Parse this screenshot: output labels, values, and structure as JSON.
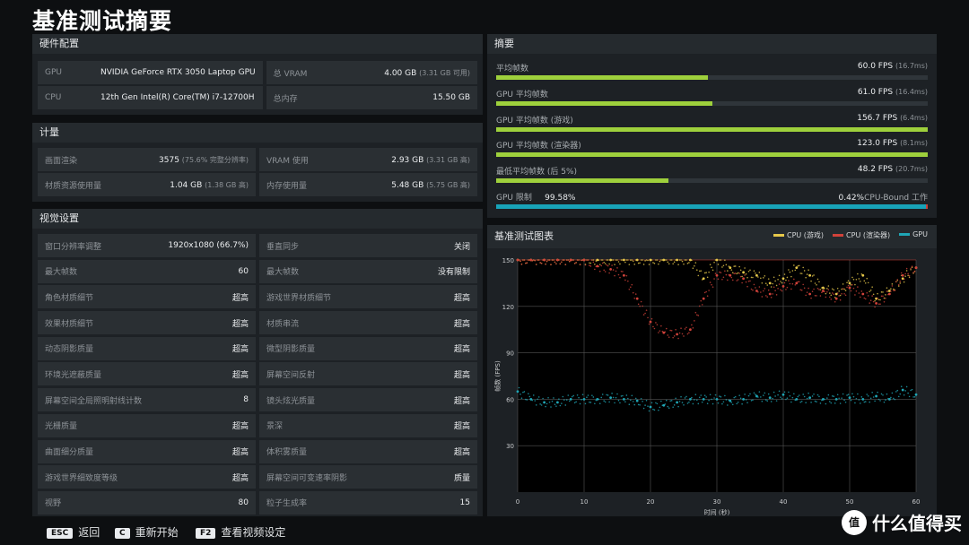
{
  "title": "基准测试摘要",
  "hardware": {
    "header": "硬件配置",
    "gpu_label": "GPU",
    "gpu_value": "NVIDIA GeForce RTX 3050 Laptop GPU",
    "cpu_label": "CPU",
    "cpu_value": "12th Gen Intel(R) Core(TM) i7-12700H",
    "vram_label": "总 VRAM",
    "vram_value": "4.00 GB",
    "vram_note": "(3.31 GB 可用)",
    "ram_label": "总内存",
    "ram_value": "15.50 GB"
  },
  "metrics": {
    "header": "计量",
    "render_label": "画面渲染",
    "render_value": "3575",
    "render_note": "(75.6% 完整分辨率)",
    "vram_use_label": "VRAM 使用",
    "vram_use_value": "2.93 GB",
    "vram_use_note": "(3.31 GB 高)",
    "mat_label": "材质资源使用量",
    "mat_value": "1.04 GB",
    "mat_note": "(1.38 GB 高)",
    "mem_label": "内存使用量",
    "mem_value": "5.48 GB",
    "mem_note": "(5.75 GB 高)"
  },
  "visual": {
    "header": "视觉设置",
    "rows": [
      {
        "label": "窗口分辨率调整",
        "value": "1920x1080 (66.7%)"
      },
      {
        "label": "垂直同步",
        "value": "关闭"
      },
      {
        "label": "最大帧数",
        "value": "60"
      },
      {
        "label": "最大帧数",
        "value": "没有限制"
      },
      {
        "label": "角色材质细节",
        "value": "超高"
      },
      {
        "label": "游戏世界材质细节",
        "value": "超高"
      },
      {
        "label": "效果材质细节",
        "value": "超高"
      },
      {
        "label": "材质串流",
        "value": "超高"
      },
      {
        "label": "动态阴影质量",
        "value": "超高"
      },
      {
        "label": "微型阴影质量",
        "value": "超高"
      },
      {
        "label": "环境光遮蔽质量",
        "value": "超高"
      },
      {
        "label": "屏幕空间反射",
        "value": "超高"
      },
      {
        "label": "屏幕空间全局照明射线计数",
        "value": "8"
      },
      {
        "label": "镜头炫光质量",
        "value": "超高"
      },
      {
        "label": "光栅质量",
        "value": "超高"
      },
      {
        "label": "景深",
        "value": "超高"
      },
      {
        "label": "曲面细分质量",
        "value": "超高"
      },
      {
        "label": "体积雾质量",
        "value": "超高"
      },
      {
        "label": "游戏世界细致度等级",
        "value": "超高"
      },
      {
        "label": "屏幕空间可变速率阴影",
        "value": "质量"
      },
      {
        "label": "视野",
        "value": "80"
      },
      {
        "label": "粒子生成率",
        "value": "15"
      }
    ]
  },
  "summary": {
    "header": "摘要",
    "rows": [
      {
        "label": "平均帧数",
        "value": "60.0 FPS",
        "note": "(16.7ms)",
        "fill": 0.49
      },
      {
        "label": "GPU 平均帧数",
        "value": "61.0 FPS",
        "note": "(16.4ms)",
        "fill": 0.5
      },
      {
        "label": "GPU 平均帧数 (游戏)",
        "value": "156.7 FPS",
        "note": "(6.4ms)",
        "fill": 1.0
      },
      {
        "label": "GPU 平均帧数 (渲染器)",
        "value": "123.0 FPS",
        "note": "(8.1ms)",
        "fill": 1.0
      },
      {
        "label": "最低平均帧数 (后 5%)",
        "value": "48.2 FPS",
        "note": "(20.7ms)",
        "fill": 0.4
      }
    ],
    "gpu_limit_label": "GPU 限制",
    "gpu_limit_value": "99.58%",
    "cpu_bound_value": "0.42%",
    "cpu_bound_label": "CPU-Bound 工作",
    "gpu_limit_fill": 0.9958
  },
  "chart_panel": {
    "header": "基准测试图表"
  },
  "chart_data": {
    "type": "scatter",
    "title": "基准测试图表",
    "xlabel": "时间 (秒)",
    "ylabel": "帧数 (FPS)",
    "xlim": [
      0,
      60
    ],
    "ylim": [
      0,
      150
    ],
    "x_ticks": [
      0,
      10,
      20,
      30,
      40,
      50,
      60
    ],
    "y_ticks": [
      30,
      60,
      90,
      120,
      150
    ],
    "legend_position": "top-right",
    "series": [
      {
        "name": "CPU (游戏)",
        "color": "#e6c84a",
        "x": [
          0,
          2,
          4,
          6,
          8,
          10,
          12,
          14,
          16,
          18,
          20,
          22,
          24,
          26,
          28,
          30,
          32,
          34,
          36,
          38,
          40,
          42,
          44,
          46,
          48,
          50,
          52,
          54,
          56,
          58,
          60
        ],
        "y": [
          150,
          150,
          150,
          150,
          150,
          150,
          150,
          150,
          150,
          150,
          150,
          150,
          150,
          150,
          138,
          150,
          145,
          142,
          140,
          135,
          138,
          145,
          140,
          132,
          128,
          135,
          140,
          125,
          130,
          138,
          145
        ]
      },
      {
        "name": "CPU (渲染器)",
        "color": "#d1423a",
        "x": [
          0,
          2,
          4,
          6,
          8,
          10,
          12,
          14,
          16,
          18,
          20,
          22,
          24,
          26,
          28,
          30,
          32,
          34,
          36,
          38,
          40,
          42,
          44,
          46,
          48,
          50,
          52,
          54,
          56,
          58,
          60
        ],
        "y": [
          150,
          150,
          150,
          150,
          150,
          150,
          146,
          144,
          140,
          125,
          110,
          103,
          102,
          105,
          125,
          140,
          140,
          138,
          130,
          128,
          133,
          135,
          128,
          130,
          125,
          132,
          128,
          122,
          128,
          140,
          145
        ]
      },
      {
        "name": "GPU",
        "color": "#1fa6b6",
        "x": [
          0,
          2,
          4,
          6,
          8,
          10,
          12,
          14,
          16,
          18,
          20,
          22,
          24,
          26,
          28,
          30,
          32,
          34,
          36,
          38,
          40,
          42,
          44,
          46,
          48,
          50,
          52,
          54,
          56,
          58,
          60
        ],
        "y": [
          65,
          60,
          58,
          58,
          60,
          60,
          60,
          61,
          60,
          59,
          55,
          56,
          58,
          60,
          60,
          60,
          59,
          60,
          62,
          61,
          63,
          60,
          61,
          60,
          60,
          61,
          60,
          62,
          60,
          66,
          63
        ]
      }
    ]
  },
  "footer": {
    "esc_key": "ESC",
    "esc_label": "返回",
    "c_key": "C",
    "c_label": "重新开始",
    "f2_key": "F2",
    "f2_label": "查看视频设定"
  },
  "watermark": {
    "logo": "值",
    "text": "什么值得买"
  }
}
